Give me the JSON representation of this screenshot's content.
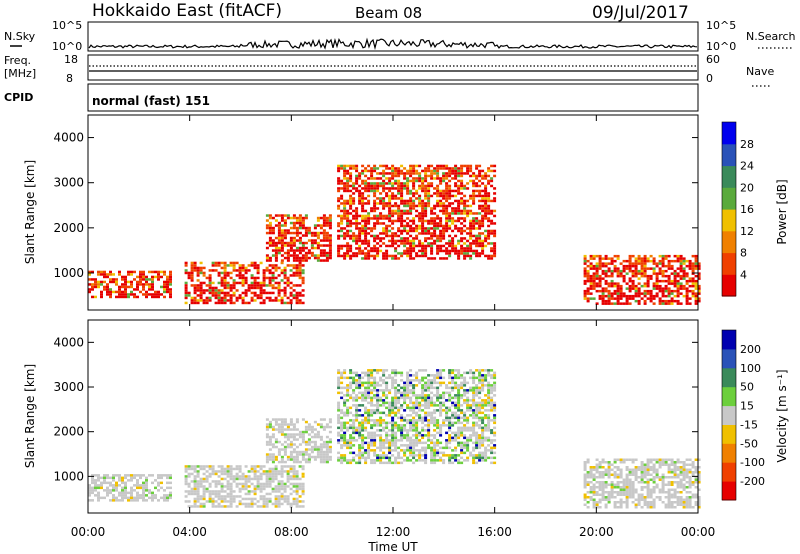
{
  "header": {
    "title": "Hokkaido East (fitACF)",
    "beam": "Beam 08",
    "date": "09/Jul/2017"
  },
  "top_panels": {
    "nsky_label": "N.Sky",
    "nsky_ticks": [
      "10^5",
      "10^0"
    ],
    "nsearch_label": "N.Search",
    "nsearch_ticks": [
      "10^5",
      "10^0"
    ],
    "freq_label": "Freq.",
    "freq_unit": "[MHz]",
    "freq_ticks": [
      "18",
      "8"
    ],
    "nave_label": "Nave",
    "nave_ticks": [
      "60",
      "0"
    ],
    "cpid_label": "CPID",
    "cpid_value": "normal (fast) 151"
  },
  "chart_data": [
    {
      "type": "heatmap",
      "name": "Power",
      "ylabel": "Slant Range [km]",
      "ylim": [
        180,
        4500
      ],
      "yticks": [
        "4000",
        "3000",
        "2000",
        "1000"
      ],
      "xticks": [
        "00:00",
        "04:00",
        "08:00",
        "12:00",
        "16:00",
        "20:00",
        "00:00"
      ],
      "xlim_hours": [
        0,
        24
      ],
      "colorbar_label": "Power [dB]",
      "colorbar_ticks": [
        "28",
        "24",
        "20",
        "16",
        "12",
        "8",
        "4"
      ],
      "colors": [
        "#0000ee",
        "#2a52b8",
        "#3a8a5a",
        "#5aaa3c",
        "#f0c000",
        "#f08000",
        "#f04000",
        "#e60000"
      ],
      "echo_regions": [
        {
          "t0": 0.0,
          "t1": 3.2,
          "r0": 450,
          "r1": 1050,
          "level": "strong"
        },
        {
          "t0": 3.8,
          "t1": 8.5,
          "r0": 350,
          "r1": 1250,
          "level": "strong"
        },
        {
          "t0": 7.0,
          "t1": 9.5,
          "r0": 1300,
          "r1": 2300,
          "level": "medium"
        },
        {
          "t0": 9.8,
          "t1": 16.0,
          "r0": 1300,
          "r1": 3400,
          "level": "strong"
        },
        {
          "t0": 19.5,
          "t1": 24.0,
          "r0": 300,
          "r1": 1400,
          "level": "strong"
        }
      ]
    },
    {
      "type": "heatmap",
      "name": "Velocity",
      "ylabel": "Slant Range [km]",
      "ylim": [
        180,
        4500
      ],
      "yticks": [
        "4000",
        "3000",
        "2000",
        "1000"
      ],
      "xticks": [
        "00:00",
        "04:00",
        "08:00",
        "12:00",
        "16:00",
        "20:00",
        "00:00"
      ],
      "xlabel": "Time UT",
      "xlim_hours": [
        0,
        24
      ],
      "colorbar_label": "Velocity [m s⁻¹]",
      "colorbar_ticks": [
        "200",
        "100",
        "50",
        "15",
        "-15",
        "-50",
        "-100",
        "-200"
      ],
      "colors": [
        "#0000b0",
        "#2a52b8",
        "#3a8a5a",
        "#6ccf3c",
        "#c8c8c8",
        "#f0c000",
        "#f08000",
        "#f04000",
        "#e60000"
      ],
      "echo_regions": [
        {
          "t0": 0.0,
          "t1": 3.2,
          "r0": 450,
          "r1": 1050,
          "level": "gray"
        },
        {
          "t0": 3.8,
          "t1": 8.5,
          "r0": 350,
          "r1": 1250,
          "level": "gray"
        },
        {
          "t0": 7.0,
          "t1": 9.5,
          "r0": 1300,
          "r1": 2300,
          "level": "gray"
        },
        {
          "t0": 9.8,
          "t1": 16.0,
          "r0": 1300,
          "r1": 3400,
          "level": "mixed"
        },
        {
          "t0": 19.5,
          "t1": 24.0,
          "r0": 300,
          "r1": 1400,
          "level": "gray"
        }
      ]
    }
  ]
}
